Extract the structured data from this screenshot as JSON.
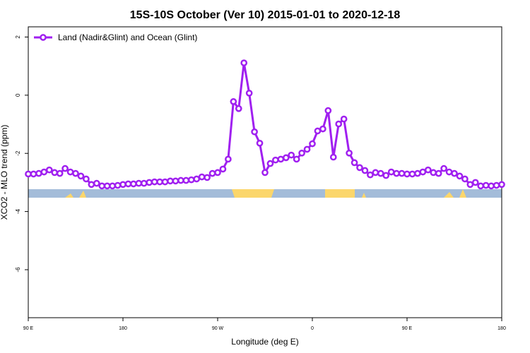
{
  "chart_data": {
    "type": "line",
    "title": "15S-10S October (Ver 10)   2015-01-01 to 2020-12-18",
    "x_label": "Longitude (deg E)",
    "y_label": "XCO2 - MLO trend (ppm)",
    "x": [
      90,
      95,
      100,
      105,
      110,
      115,
      120,
      125,
      130,
      135,
      140,
      145,
      150,
      155,
      160,
      165,
      170,
      175,
      180,
      185,
      190,
      195,
      200,
      205,
      210,
      215,
      220,
      225,
      230,
      235,
      240,
      245,
      250,
      255,
      260,
      265,
      270,
      275,
      280,
      285,
      290,
      295,
      300,
      305,
      310,
      315,
      320,
      325,
      330,
      335,
      340,
      345,
      350,
      355,
      360,
      365,
      370,
      375,
      380,
      385,
      390,
      395,
      400,
      405,
      410,
      415,
      420,
      425,
      430,
      435,
      440,
      445,
      450,
      455,
      460,
      465,
      470,
      475,
      480,
      485,
      490,
      495,
      500,
      505,
      510,
      515,
      520,
      525,
      530,
      535,
      540
    ],
    "series": [
      {
        "name": "Land (Nadir&Glint) and Ocean (Glint)",
        "color": "#a020f0",
        "values": [
          -2.71,
          -2.71,
          -2.69,
          -2.64,
          -2.57,
          -2.66,
          -2.69,
          -2.52,
          -2.64,
          -2.69,
          -2.78,
          -2.88,
          -3.07,
          -3.03,
          -3.12,
          -3.12,
          -3.12,
          -3.1,
          -3.07,
          -3.05,
          -3.05,
          -3.03,
          -3.03,
          -3.0,
          -2.98,
          -2.98,
          -2.98,
          -2.95,
          -2.95,
          -2.93,
          -2.93,
          -2.91,
          -2.88,
          -2.81,
          -2.83,
          -2.69,
          -2.66,
          -2.54,
          -2.2,
          -0.22,
          -0.46,
          1.11,
          0.07,
          -1.26,
          -1.65,
          -2.66,
          -2.35,
          -2.23,
          -2.2,
          -2.15,
          -2.06,
          -2.2,
          -1.99,
          -1.86,
          -1.67,
          -1.23,
          -1.16,
          -0.53,
          -2.13,
          -0.99,
          -0.82,
          -1.99,
          -2.32,
          -2.49,
          -2.59,
          -2.74,
          -2.66,
          -2.69,
          -2.76,
          -2.64,
          -2.69,
          -2.69,
          -2.71,
          -2.71,
          -2.69,
          -2.64,
          -2.57,
          -2.66,
          -2.69,
          -2.52,
          -2.64,
          -2.69,
          -2.78,
          -2.88,
          -3.07,
          -3.0,
          -3.12,
          -3.1,
          -3.12,
          -3.1,
          -3.07
        ]
      }
    ],
    "xlim": [
      90,
      540
    ],
    "xticks": [
      {
        "value": 90,
        "label": "90 E"
      },
      {
        "value": 180,
        "label": "180"
      },
      {
        "value": 270,
        "label": "90 W"
      },
      {
        "value": 360,
        "label": "0"
      },
      {
        "value": 450,
        "label": "90 E"
      },
      {
        "value": 540,
        "label": "180"
      }
    ],
    "ylim": [
      -7.65,
      2.35
    ],
    "yticks": [
      2,
      0,
      -2,
      -4,
      -6
    ],
    "legend": "top-left"
  }
}
